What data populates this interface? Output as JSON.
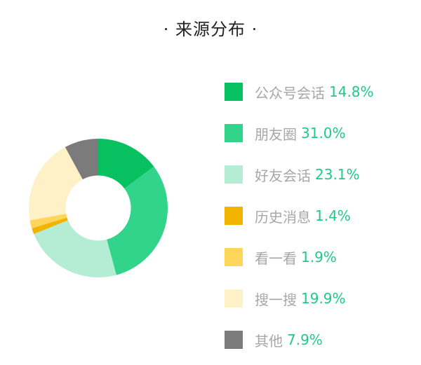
{
  "title": "· 来源分布 ·",
  "chart_data": {
    "type": "pie",
    "title": "· 来源分布 ·",
    "series": [
      {
        "name": "公众号会话",
        "value": 14.8,
        "value_label": "14.8%",
        "color": "#07c160"
      },
      {
        "name": "朋友圈",
        "value": 31.0,
        "value_label": "31.0%",
        "color": "#32d38b"
      },
      {
        "name": "好友会话",
        "value": 23.1,
        "value_label": "23.1%",
        "color": "#b4edd4"
      },
      {
        "name": "历史消息",
        "value": 1.4,
        "value_label": "1.4%",
        "color": "#f0b300"
      },
      {
        "name": "看一看",
        "value": 1.9,
        "value_label": "1.9%",
        "color": "#ffd65c"
      },
      {
        "name": "搜一搜",
        "value": 19.9,
        "value_label": "19.9%",
        "color": "#fff1c7"
      },
      {
        "name": "其他",
        "value": 7.9,
        "value_label": "7.9%",
        "color": "#7b7b7b"
      }
    ],
    "start_angle_deg": 0,
    "direction": "clockwise",
    "inner_radius_ratio": 0.47,
    "legend_position": "right"
  }
}
